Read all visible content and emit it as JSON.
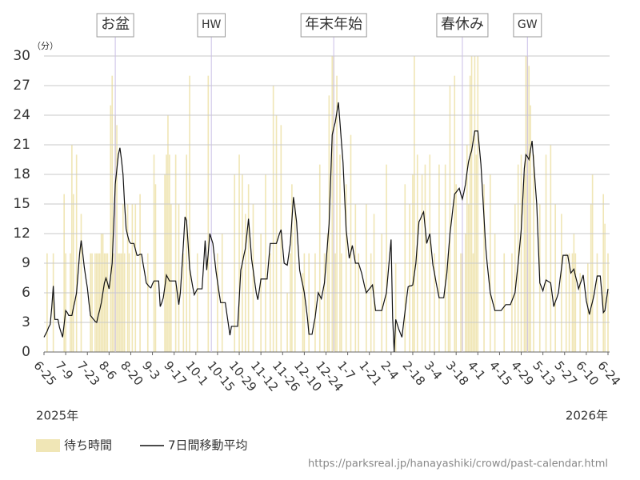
{
  "chart_data": {
    "type": "bar",
    "y_unit": "（分）",
    "annotations": [
      "お盆",
      "HW",
      "年末年始",
      "春休み",
      "GW"
    ],
    "year_labels": [
      "2025年",
      "2026年"
    ],
    "source": "https://parksreal.jp/hanayashiki/crowd/past-calendar.html",
    "ylim": [
      0,
      30
    ],
    "yticks": [
      0,
      3,
      6,
      9,
      12,
      15,
      18,
      21,
      24,
      27,
      30
    ],
    "grid": true,
    "categories": [
      "6-25",
      null,
      null,
      null,
      null,
      null,
      null,
      null,
      null,
      null,
      null,
      null,
      null,
      null,
      "7-9",
      null,
      null,
      null,
      null,
      null,
      null,
      null,
      null,
      null,
      null,
      null,
      null,
      null,
      "7-23",
      null,
      null,
      null,
      null,
      null,
      null,
      null,
      null,
      null,
      null,
      null,
      null,
      null,
      "8-6",
      null,
      null,
      null,
      null,
      null,
      null,
      null,
      null,
      null,
      null,
      null,
      null,
      null,
      "8-20",
      null,
      null,
      null,
      null,
      null,
      null,
      null,
      null,
      null,
      null,
      null,
      null,
      null,
      "9-3",
      null,
      null,
      null,
      null,
      null,
      null,
      null,
      null,
      null,
      null,
      null,
      null,
      null,
      "9-17",
      null,
      null,
      null,
      null,
      null,
      null,
      null,
      null,
      null,
      null,
      null,
      null,
      null,
      "10-1",
      null,
      null,
      null,
      null,
      null,
      null,
      null,
      null,
      null,
      null,
      null,
      null,
      null,
      "10-15",
      null,
      null,
      null,
      null,
      null,
      null,
      null,
      null,
      null,
      null,
      null,
      null,
      null,
      "10-29",
      null,
      null,
      null,
      null,
      null,
      null,
      null,
      null,
      null,
      null,
      null,
      null,
      null,
      "11-12",
      null,
      null,
      null,
      null,
      null,
      null,
      null,
      null,
      null,
      null,
      null,
      null,
      null,
      "11-26",
      null,
      null,
      null,
      null,
      null,
      null,
      null,
      null,
      null,
      null,
      null,
      null,
      null,
      "12-10",
      null,
      null,
      null,
      null,
      null,
      null,
      null,
      null,
      null,
      null,
      null,
      null,
      null,
      "12-24",
      null,
      null,
      null,
      null,
      null,
      null,
      null,
      null,
      null,
      null,
      null,
      null,
      null,
      "1-7",
      null,
      null,
      null,
      null,
      null,
      null,
      null,
      null,
      null,
      null,
      null,
      null,
      null,
      "1-21",
      null,
      null,
      null,
      null,
      null,
      null,
      null,
      null,
      null,
      null,
      null,
      null,
      null,
      "2-4",
      null,
      null,
      null,
      null,
      null,
      null,
      null,
      null,
      null,
      null,
      null,
      null,
      null,
      "2-18",
      null,
      null,
      null,
      null,
      null,
      null,
      null,
      null,
      null,
      null,
      null,
      null,
      null,
      "3-4",
      null,
      null,
      null,
      null,
      null,
      null,
      null,
      null,
      null,
      null,
      null,
      null,
      null,
      "3-18",
      null,
      null,
      null,
      null,
      null,
      null,
      null,
      null,
      null,
      null,
      null,
      null,
      null,
      "4-1",
      null,
      null,
      null,
      null,
      null,
      null,
      null,
      null,
      null,
      null,
      null,
      null,
      null,
      "4-15",
      null,
      null,
      null,
      null,
      null,
      null,
      null,
      null,
      null,
      null,
      null,
      null,
      null,
      "4-29",
      null,
      null,
      null,
      null,
      null,
      null,
      null,
      null,
      null,
      null,
      null,
      null,
      null,
      "5-13",
      null,
      null,
      null,
      null,
      null,
      null,
      null,
      null,
      null,
      null,
      null,
      null,
      null,
      "5-27",
      null,
      null,
      null,
      null,
      null,
      null,
      null,
      null,
      null,
      null,
      null,
      null,
      null,
      "6-10",
      null,
      null,
      null,
      null,
      null,
      null,
      null,
      null,
      null,
      null,
      null,
      null,
      null,
      "6-24"
    ],
    "series": [
      {
        "name": "待ち時間",
        "type": "bar",
        "color": "#f0e6b6",
        "values": [
          0,
          0,
          10,
          0,
          0,
          0,
          10,
          0,
          0,
          0,
          0,
          0,
          0,
          16,
          10,
          0,
          0,
          10,
          21,
          16,
          0,
          20,
          0,
          0,
          14,
          0,
          0,
          0,
          0,
          0,
          10,
          10,
          0,
          10,
          10,
          10,
          10,
          12,
          12,
          10,
          10,
          10,
          0,
          25,
          28,
          10,
          24,
          23,
          10,
          10,
          10,
          15,
          10,
          0,
          15,
          10,
          0,
          15,
          0,
          15,
          0,
          0,
          16,
          0,
          0,
          0,
          0,
          10,
          0,
          0,
          0,
          20,
          17,
          0,
          0,
          0,
          0,
          0,
          18,
          20,
          24,
          20,
          15,
          0,
          0,
          20,
          0,
          15,
          0,
          0,
          10,
          0,
          20,
          0,
          28,
          0,
          0,
          0,
          0,
          10,
          0,
          0,
          0,
          0,
          0,
          0,
          28,
          0,
          0,
          0,
          0,
          0,
          10,
          0,
          0,
          12,
          0,
          0,
          0,
          0,
          0,
          0,
          0,
          18,
          0,
          0,
          20,
          0,
          18,
          0,
          14,
          0,
          17,
          0,
          0,
          15,
          0,
          0,
          0,
          0,
          12,
          0,
          0,
          18,
          0,
          0,
          10,
          0,
          27,
          0,
          24,
          0,
          0,
          23,
          0,
          0,
          0,
          6,
          0,
          10,
          17,
          0,
          15,
          0,
          0,
          0,
          0,
          8,
          10,
          0,
          0,
          10,
          0,
          0,
          0,
          10,
          0,
          0,
          19,
          0,
          0,
          10,
          0,
          12,
          26,
          0,
          30,
          30,
          10,
          28,
          0,
          20,
          10,
          0,
          0,
          17,
          0,
          0,
          22,
          0,
          0,
          15,
          0,
          10,
          0,
          0,
          0,
          0,
          15,
          0,
          0,
          10,
          0,
          14,
          0,
          0,
          0,
          0,
          12,
          0,
          0,
          19,
          0,
          0,
          0,
          0,
          0,
          9,
          0,
          0,
          0,
          0,
          0,
          17,
          0,
          0,
          15,
          0,
          18,
          30,
          0,
          20,
          0,
          0,
          18,
          0,
          19,
          0,
          0,
          20,
          0,
          0,
          10,
          0,
          0,
          19,
          0,
          0,
          0,
          19,
          0,
          10,
          27,
          0,
          0,
          28,
          17,
          0,
          0,
          10,
          10,
          0,
          12,
          21,
          15,
          28,
          30,
          10,
          30,
          20,
          30,
          0,
          0,
          0,
          17,
          0,
          0,
          0,
          18,
          0,
          0,
          12,
          0,
          0,
          0,
          0,
          0,
          10,
          0,
          0,
          0,
          0,
          10,
          0,
          15,
          0,
          19,
          0,
          20,
          0,
          18,
          30,
          30,
          29,
          25,
          0,
          20,
          0,
          0,
          0,
          15,
          0,
          0,
          0,
          20,
          0,
          0,
          21,
          0,
          0,
          15,
          0,
          0,
          0,
          14,
          0,
          0,
          10,
          0,
          10,
          0,
          10,
          12,
          10,
          0,
          0,
          8,
          0,
          0,
          0,
          0,
          9,
          0,
          15,
          18,
          0,
          0,
          10,
          0,
          0,
          0,
          16,
          13,
          0,
          10
        ]
      },
      {
        "name": "7日間移動平均",
        "type": "line",
        "color": "#111111",
        "values": [
          1.5,
          1.8,
          2.1,
          2.5,
          2.8,
          4.5,
          6.7,
          3.3,
          3.3,
          3.3,
          2.5,
          2,
          1.5,
          2.8,
          4.2,
          4,
          3.7,
          3.7,
          3.7,
          4.5,
          5.2,
          6,
          8,
          10,
          11.3,
          10,
          8.6,
          7.5,
          6.5,
          5,
          3.7,
          3.5,
          3.3,
          3.1,
          3,
          3.7,
          4.3,
          5,
          6,
          7,
          7.5,
          7,
          6.4,
          7.7,
          9,
          13,
          17,
          18.5,
          20,
          20.7,
          19.5,
          18,
          15,
          12.5,
          11.8,
          11.2,
          11,
          11,
          11,
          10.4,
          9.8,
          9.8,
          9.9,
          9.9,
          8.9,
          8,
          7,
          6.8,
          6.6,
          6.5,
          6.9,
          7.2,
          7.2,
          7.2,
          7.2,
          4.6,
          5,
          5.5,
          6.6,
          7.8,
          7.5,
          7.2,
          7.2,
          7.2,
          7.2,
          7.2,
          6,
          4.8,
          6,
          8.5,
          11,
          13.7,
          13.3,
          11,
          8.5,
          7.5,
          6.6,
          5.8,
          6.1,
          6.4,
          6.4,
          6.4,
          6.4,
          8.8,
          11.3,
          8.3,
          10,
          12,
          11.5,
          11,
          9.6,
          8.2,
          7.1,
          6,
          5,
          5,
          5,
          5,
          3.9,
          2.8,
          1.7,
          2.6,
          2.6,
          2.6,
          2.6,
          2.6,
          5.4,
          8.3,
          9,
          9.8,
          10.5,
          12,
          13.5,
          11.5,
          9.4,
          8.3,
          7.1,
          6,
          5.3,
          6.3,
          7.4,
          7.4,
          7.4,
          7.4,
          7.4,
          9.2,
          11,
          11,
          11,
          11,
          11,
          11.5,
          12,
          12.4,
          10.7,
          9,
          8.9,
          8.8,
          9.9,
          11,
          13.4,
          15.7,
          14.5,
          13.2,
          10.7,
          8.3,
          7.5,
          6.8,
          6,
          4.8,
          3.5,
          1.8,
          1.8,
          1.8,
          2.7,
          3.5,
          4.8,
          6,
          5.7,
          5.4,
          6.2,
          7,
          9,
          11,
          13,
          17.5,
          22,
          22.7,
          23.3,
          24.3,
          25.3,
          23.3,
          21.2,
          19.2,
          15.8,
          12.4,
          11,
          9.5,
          10.1,
          10.8,
          9.9,
          9,
          9,
          9,
          8.5,
          8,
          7.3,
          6.6,
          6,
          6.2,
          6.4,
          6.6,
          6.8,
          5.5,
          4.2,
          4.2,
          4.2,
          4.2,
          4.2,
          4.8,
          5.4,
          6,
          7.8,
          9.6,
          11.4,
          3.5,
          0,
          3.3,
          2.8,
          2.3,
          1.9,
          1.5,
          2.8,
          4.1,
          5.4,
          6.6,
          6.7,
          6.7,
          6.8,
          7.9,
          9,
          11.1,
          13.2,
          13.5,
          13.9,
          14.2,
          12.6,
          11,
          11.5,
          12,
          10.4,
          8.8,
          8,
          7.1,
          6.3,
          5.5,
          5.5,
          5.5,
          5.5,
          6.8,
          8,
          10,
          12,
          13.3,
          14.7,
          16,
          16.2,
          16.4,
          16.6,
          16,
          15.5,
          16.2,
          17,
          18.2,
          19.3,
          19.9,
          20.4,
          21.4,
          22.4,
          22.4,
          22.4,
          20.7,
          19,
          16.3,
          13.6,
          10.8,
          9,
          7.5,
          6,
          5.4,
          4.8,
          4.2,
          4.2,
          4.2,
          4.2,
          4.2,
          4.4,
          4.6,
          4.8,
          4.8,
          4.8,
          4.8,
          5.2,
          5.6,
          6,
          7.5,
          9,
          10.7,
          12.4,
          15.5,
          18.6,
          20,
          19.8,
          19.5,
          20.5,
          21.4,
          19.3,
          17.1,
          15,
          11,
          7,
          6.6,
          6.2,
          6.8,
          7.3,
          7.2,
          7.1,
          7,
          5.8,
          4.6,
          5.1,
          5.5,
          6,
          7.3,
          8.5,
          9.8,
          9.8,
          9.8,
          9.8,
          8.9,
          8,
          8.2,
          8.4,
          7.7,
          7.1,
          6.4,
          6.9,
          7.3,
          7.8,
          6.5,
          5.2,
          4.5,
          3.8,
          4.5,
          5.1,
          5.8,
          6.8,
          7.7,
          7.7,
          7.7,
          6,
          4,
          4.2,
          5.3,
          6.4
        ]
      }
    ]
  }
}
